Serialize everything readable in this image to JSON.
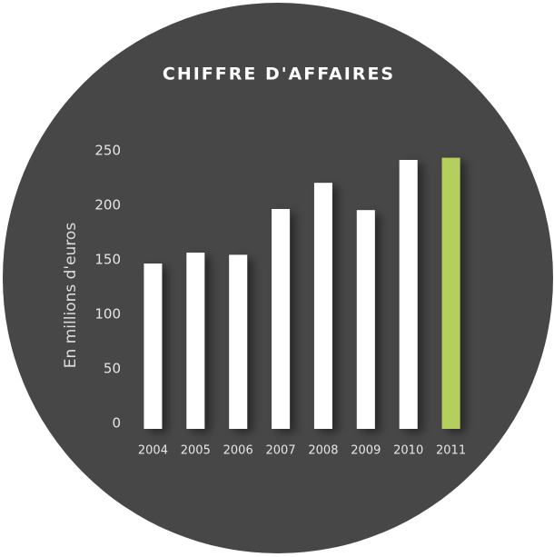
{
  "chart_data": {
    "type": "bar",
    "title": "CHIFFRE D'AFFAIRES",
    "y_label": "En millions d'euros",
    "categories": [
      "2004",
      "2005",
      "2006",
      "2007",
      "2008",
      "2009",
      "2010",
      "2011"
    ],
    "values": [
      150,
      160,
      158,
      200,
      224,
      199,
      245,
      247
    ],
    "colors": [
      "#ffffff",
      "#ffffff",
      "#ffffff",
      "#ffffff",
      "#ffffff",
      "#ffffff",
      "#ffffff",
      "#b5cf5f"
    ],
    "ylim": [
      0,
      250
    ],
    "yticks": [
      0,
      50,
      100,
      150,
      200,
      250
    ],
    "grid": false
  }
}
